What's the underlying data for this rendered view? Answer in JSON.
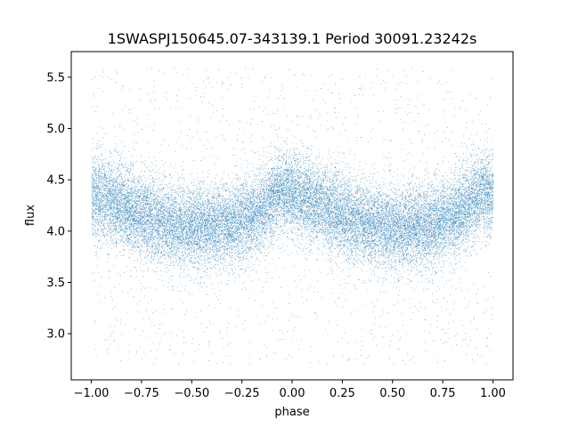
{
  "chart_data": {
    "type": "scatter",
    "title": "1SWASPJ150645.07-343139.1 Period 30091.23242s",
    "xlabel": "phase",
    "ylabel": "flux",
    "xlim": [
      -1.1,
      1.1
    ],
    "ylim": [
      2.55,
      5.75
    ],
    "xticks": [
      -1.0,
      -0.75,
      -0.5,
      -0.25,
      0.0,
      0.25,
      0.5,
      0.75,
      1.0
    ],
    "xtick_labels": [
      "−1.00",
      "−0.75",
      "−0.50",
      "−0.25",
      "0.00",
      "0.25",
      "0.50",
      "0.75",
      "1.00"
    ],
    "yticks": [
      3.0,
      3.5,
      4.0,
      4.5,
      5.0,
      5.5
    ],
    "ytick_labels": [
      "3.0",
      "3.5",
      "4.0",
      "4.5",
      "5.0",
      "5.5"
    ],
    "grid": false,
    "series": [
      {
        "color": "#1f77b4",
        "marker_size": 0.6,
        "description_points": "dense periodic cloud; phase-folded light curve repeated over [-1,1]",
        "x_phase_profile": [
          0.0,
          0.1,
          0.2,
          0.3,
          0.4,
          0.5,
          0.6,
          0.7,
          0.8,
          0.9,
          0.95,
          1.0
        ],
        "y_mean_profile": [
          4.35,
          4.3,
          4.2,
          4.12,
          4.06,
          4.04,
          4.03,
          4.06,
          4.15,
          4.3,
          4.4,
          4.35
        ],
        "y_scatter": 0.2,
        "point_count": 26000
      }
    ]
  }
}
